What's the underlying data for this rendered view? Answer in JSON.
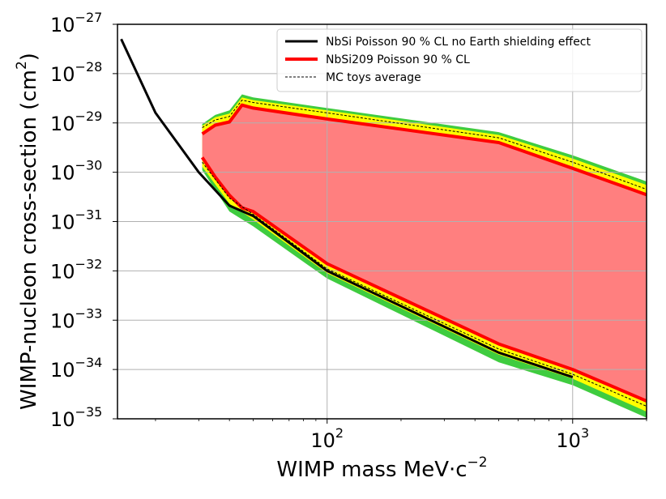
{
  "chart_data": {
    "type": "line",
    "xscale": "log",
    "yscale": "log",
    "xlim": [
      14,
      2000
    ],
    "ylim": [
      1e-35,
      1e-27
    ],
    "grid": true,
    "xlabel_text": "WIMP mass MeV·c",
    "xlabel_sup": "−2",
    "ylabel_text": "WIMP-nucleon cross-section (cm",
    "ylabel_sup": "2",
    "ylabel_close": ")",
    "x_ticks": [
      {
        "value": 100,
        "base": "10",
        "exp": "2"
      },
      {
        "value": 1000,
        "base": "10",
        "exp": "3"
      }
    ],
    "y_ticks": [
      {
        "value": 1e-27,
        "base": "10",
        "exp": "−27"
      },
      {
        "value": 1e-28,
        "base": "10",
        "exp": "−28"
      },
      {
        "value": 1e-29,
        "base": "10",
        "exp": "−29"
      },
      {
        "value": 1e-30,
        "base": "10",
        "exp": "−30"
      },
      {
        "value": 1e-31,
        "base": "10",
        "exp": "−31"
      },
      {
        "value": 1e-32,
        "base": "10",
        "exp": "−32"
      },
      {
        "value": 1e-33,
        "base": "10",
        "exp": "−33"
      },
      {
        "value": 1e-34,
        "base": "10",
        "exp": "−34"
      },
      {
        "value": 1e-35,
        "base": "10",
        "exp": "−35"
      }
    ],
    "legend": {
      "position": "top-right",
      "entries": [
        {
          "label": "NbSi Poisson 90 % CL  no Earth shielding effect",
          "color": "#000000",
          "style": "solid",
          "width": 3
        },
        {
          "label": "NbSi209 Poisson 90 % CL",
          "color": "#ff0000",
          "style": "solid",
          "width": 4
        },
        {
          "label": " MC toys average",
          "color": "#000000",
          "style": "dashed",
          "width": 1
        }
      ]
    },
    "colors": {
      "red_fill": "#ff7f7f",
      "red_line": "#ff0000",
      "black_line": "#000000",
      "green_band": "#3fcc3f",
      "yellow_band": "#ffff00",
      "grid": "#b0b0b0"
    },
    "series": [
      {
        "name": "NbSi Poisson 90 % CL  no Earth shielding effect",
        "color": "#000000",
        "points": [
          [
            14.5,
            5e-28
          ],
          [
            20,
            1.6e-29
          ],
          [
            30,
            1e-30
          ],
          [
            40,
            2.1e-31
          ],
          [
            50,
            1.3e-31
          ],
          [
            100,
            1e-32
          ],
          [
            500,
            2.2e-34
          ],
          [
            1000,
            7e-35
          ]
        ]
      },
      {
        "name": "NbSi209 Poisson 90 % CL upper",
        "color": "#ff0000",
        "points": [
          [
            31,
            6e-30
          ],
          [
            35,
            9e-30
          ],
          [
            40,
            1.05e-29
          ],
          [
            45,
            2.3e-29
          ],
          [
            50,
            2e-29
          ],
          [
            100,
            1.2e-29
          ],
          [
            500,
            4e-30
          ],
          [
            1000,
            1.2e-30
          ],
          [
            2000,
            3.5e-31
          ]
        ]
      },
      {
        "name": "NbSi209 Poisson 90 % CL lower",
        "color": "#ff0000",
        "points": [
          [
            31,
            2e-30
          ],
          [
            35,
            8e-31
          ],
          [
            40,
            3.4e-31
          ],
          [
            45,
            1.9e-31
          ],
          [
            50,
            1.6e-31
          ],
          [
            100,
            1.4e-32
          ],
          [
            500,
            3.3e-34
          ],
          [
            1000,
            1e-34
          ],
          [
            2000,
            2.3e-35
          ]
        ]
      },
      {
        "name": "MC toys average upper",
        "color": "#000000",
        "points": [
          [
            31,
            8e-30
          ],
          [
            35,
            1.15e-29
          ],
          [
            40,
            1.35e-29
          ],
          [
            45,
            2.9e-29
          ],
          [
            50,
            2.6e-29
          ],
          [
            100,
            1.6e-29
          ],
          [
            500,
            5e-30
          ],
          [
            1000,
            1.6e-30
          ],
          [
            2000,
            4.5e-31
          ]
        ]
      },
      {
        "name": "MC toys average lower",
        "color": "#000000",
        "points": [
          [
            31,
            1.6e-30
          ],
          [
            40,
            3e-31
          ],
          [
            50,
            1.4e-31
          ],
          [
            100,
            1.1e-32
          ],
          [
            500,
            2.6e-34
          ],
          [
            1000,
            8e-35
          ],
          [
            2000,
            1.8e-35
          ]
        ]
      }
    ],
    "bands": {
      "outer_upper": [
        [
          31,
          9.5e-30
        ],
        [
          35,
          1.45e-29
        ],
        [
          40,
          1.8e-29
        ],
        [
          45,
          3.8e-29
        ],
        [
          50,
          3.3e-29
        ],
        [
          100,
          2e-29
        ],
        [
          500,
          6.5e-30
        ],
        [
          1000,
          2.2e-30
        ],
        [
          2000,
          6.5e-31
        ]
      ],
      "inner_upper": [
        [
          31,
          8.7e-30
        ],
        [
          35,
          1.3e-29
        ],
        [
          40,
          1.55e-29
        ],
        [
          45,
          3.3e-29
        ],
        [
          50,
          2.9e-29
        ],
        [
          100,
          1.8e-29
        ],
        [
          500,
          5.7e-30
        ],
        [
          1000,
          1.9e-30
        ],
        [
          2000,
          5.5e-31
        ]
      ],
      "inner_lower": [
        [
          31,
          1.3e-30
        ],
        [
          40,
          2.3e-31
        ],
        [
          50,
          1.1e-31
        ],
        [
          100,
          9e-33
        ],
        [
          500,
          2e-34
        ],
        [
          1000,
          6.5e-35
        ],
        [
          2000,
          1.4e-35
        ]
      ],
      "outer_lower": [
        [
          31,
          1.1e-30
        ],
        [
          40,
          1.6e-31
        ],
        [
          50,
          8e-32
        ],
        [
          100,
          7e-33
        ],
        [
          500,
          1.4e-34
        ],
        [
          1000,
          4.8e-35
        ],
        [
          2000,
          1.05e-35
        ]
      ]
    }
  }
}
